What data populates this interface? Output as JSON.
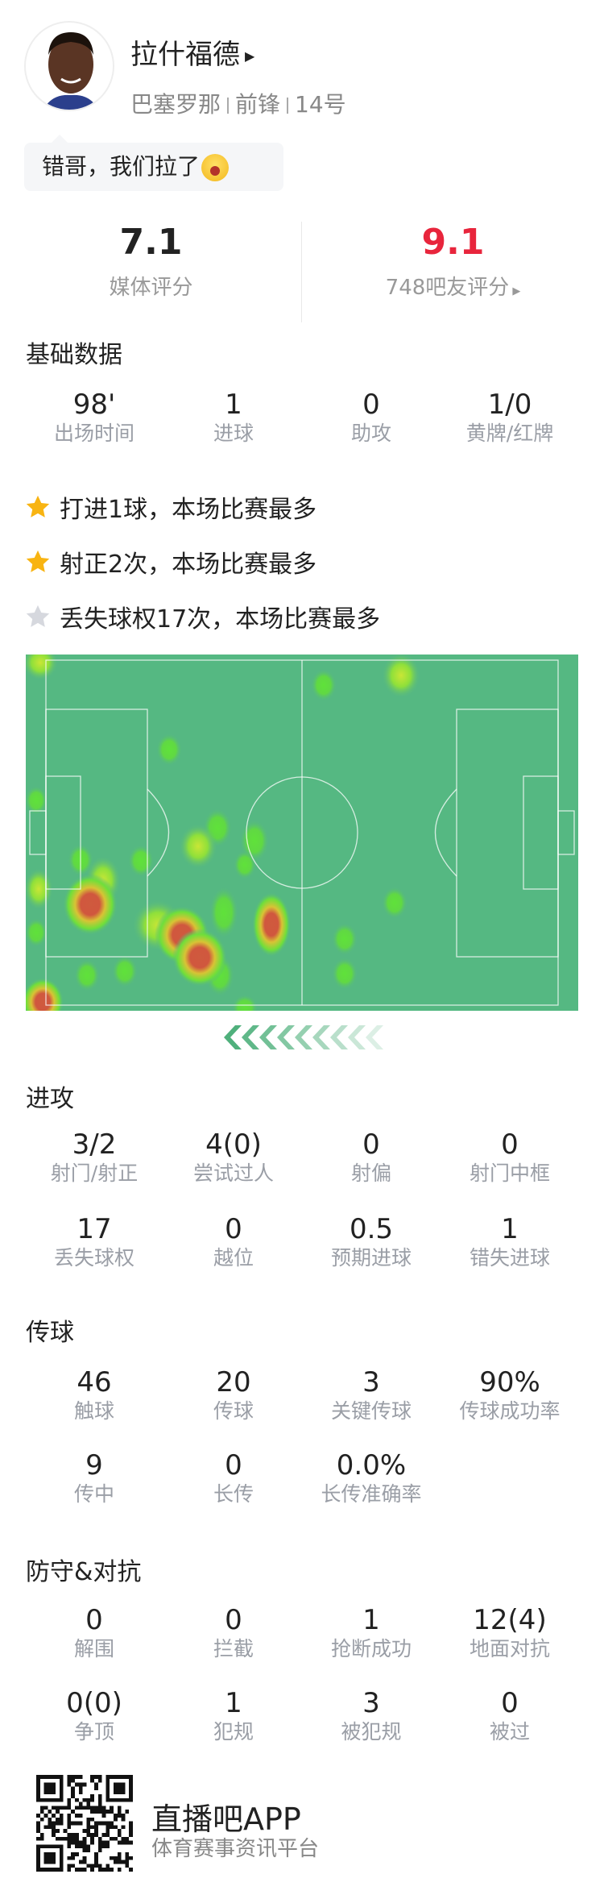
{
  "player": {
    "name": "拉什福德",
    "team": "巴塞罗那",
    "position": "前锋",
    "number": "14号",
    "comment": "错哥，我们拉了",
    "comment_emoji": "crying-face-emoji"
  },
  "ratings": {
    "media_score": "7.1",
    "media_label": "媒体评分",
    "fan_score": "9.1",
    "fan_label": "748吧友评分",
    "fan_color": "#e8253c"
  },
  "basic": {
    "title": "基础数据",
    "stats": [
      {
        "v": "98'",
        "l": "出场时间"
      },
      {
        "v": "1",
        "l": "进球"
      },
      {
        "v": "0",
        "l": "助攻"
      },
      {
        "v": "1/0",
        "l": "黄牌/红牌"
      }
    ]
  },
  "highlights": [
    {
      "text": "打进1球，本场比赛最多",
      "icon": "gold-star"
    },
    {
      "text": "射正2次，本场比赛最多",
      "icon": "gold-star"
    },
    {
      "text": "丢失球权17次，本场比赛最多",
      "icon": "silver-star"
    }
  ],
  "heatmap": {
    "pitch_color": "#55b882",
    "direction": "attacking-left"
  },
  "attack": {
    "title": "进攻",
    "stats": [
      {
        "v": "3/2",
        "l": "射门/射正"
      },
      {
        "v": "4(0)",
        "l": "尝试过人"
      },
      {
        "v": "0",
        "l": "射偏"
      },
      {
        "v": "0",
        "l": "射门中框"
      },
      {
        "v": "17",
        "l": "丢失球权"
      },
      {
        "v": "0",
        "l": "越位"
      },
      {
        "v": "0.5",
        "l": "预期进球"
      },
      {
        "v": "1",
        "l": "错失进球"
      }
    ]
  },
  "passing": {
    "title": "传球",
    "stats": [
      {
        "v": "46",
        "l": "触球"
      },
      {
        "v": "20",
        "l": "传球"
      },
      {
        "v": "3",
        "l": "关键传球"
      },
      {
        "v": "90%",
        "l": "传球成功率"
      },
      {
        "v": "9",
        "l": "传中"
      },
      {
        "v": "0",
        "l": "长传"
      },
      {
        "v": "0.0%",
        "l": "长传准确率"
      }
    ]
  },
  "defense": {
    "title": "防守&对抗",
    "stats": [
      {
        "v": "0",
        "l": "解围"
      },
      {
        "v": "0",
        "l": "拦截"
      },
      {
        "v": "1",
        "l": "抢断成功"
      },
      {
        "v": "12(4)",
        "l": "地面对抗"
      },
      {
        "v": "0(0)",
        "l": "争顶"
      },
      {
        "v": "1",
        "l": "犯规"
      },
      {
        "v": "3",
        "l": "被犯规"
      },
      {
        "v": "0",
        "l": "被过"
      }
    ]
  },
  "footer": {
    "app_name": "直播吧APP",
    "tagline": "体育赛事资讯平台"
  }
}
